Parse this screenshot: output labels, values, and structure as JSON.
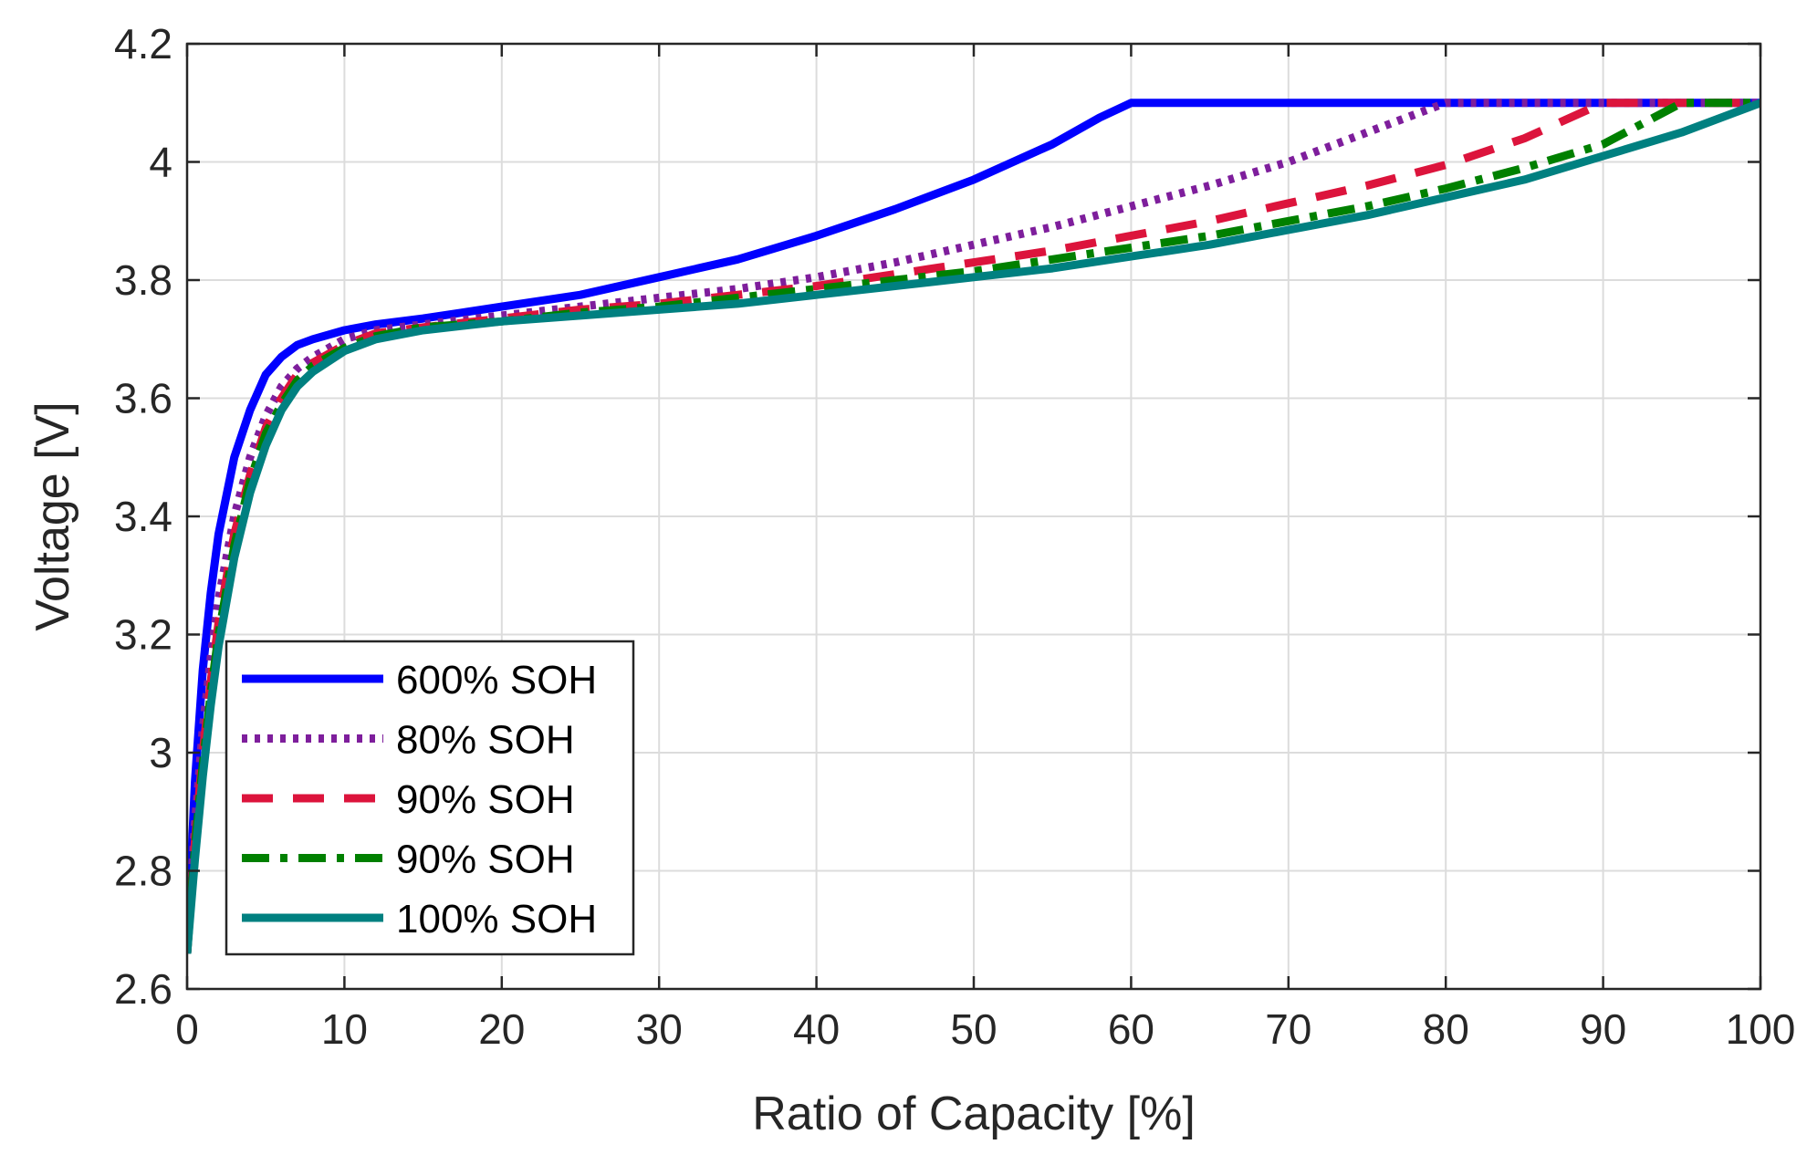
{
  "chart_data": {
    "type": "line",
    "title": "",
    "xlabel": "Ratio of Capacity [%]",
    "ylabel": "Voltage [V]",
    "xlim": [
      0,
      100
    ],
    "ylim": [
      2.6,
      4.2
    ],
    "xticks": [
      0,
      10,
      20,
      30,
      40,
      50,
      60,
      70,
      80,
      90,
      100
    ],
    "xtick_labels": [
      "0",
      "10",
      "20",
      "30",
      "40",
      "50",
      "60",
      "70",
      "80",
      "90",
      "100"
    ],
    "yticks": [
      2.6,
      2.8,
      3.0,
      3.2,
      3.4,
      3.6,
      3.8,
      4.0,
      4.2
    ],
    "ytick_labels": [
      "2.6",
      "2.8",
      "3",
      "3.2",
      "3.4",
      "3.6",
      "3.8",
      "4",
      "4.2"
    ],
    "grid": true,
    "legend_position": "bottom-left",
    "series": [
      {
        "name": "600% SOH",
        "color": "#0000ff",
        "dash": "solid",
        "x": [
          0,
          0.5,
          1,
          1.5,
          2,
          3,
          4,
          5,
          6,
          7,
          8,
          10,
          12,
          15,
          20,
          25,
          30,
          35,
          40,
          45,
          50,
          55,
          58,
          60,
          70,
          80,
          90,
          100
        ],
        "y": [
          2.66,
          2.95,
          3.14,
          3.27,
          3.37,
          3.5,
          3.58,
          3.64,
          3.67,
          3.69,
          3.7,
          3.715,
          3.725,
          3.735,
          3.755,
          3.775,
          3.805,
          3.835,
          3.875,
          3.92,
          3.97,
          4.03,
          4.075,
          4.1,
          4.1,
          4.1,
          4.1,
          4.1
        ]
      },
      {
        "name": "80% SOH",
        "color": "#7e1e9c",
        "dash": "dotted",
        "x": [
          0,
          0.5,
          1,
          1.5,
          2,
          3,
          4,
          5,
          6,
          7,
          8,
          10,
          12,
          15,
          20,
          25,
          30,
          35,
          40,
          45,
          50,
          55,
          60,
          65,
          70,
          75,
          80,
          90,
          100
        ],
        "y": [
          2.66,
          2.88,
          3.04,
          3.16,
          3.26,
          3.4,
          3.5,
          3.57,
          3.62,
          3.65,
          3.67,
          3.7,
          3.715,
          3.725,
          3.74,
          3.755,
          3.77,
          3.785,
          3.805,
          3.83,
          3.86,
          3.89,
          3.925,
          3.96,
          4.0,
          4.05,
          4.1,
          4.1,
          4.1
        ]
      },
      {
        "name": "90% SOH",
        "color": "#dc143c",
        "dash": "dashed",
        "x": [
          0,
          0.5,
          1,
          1.5,
          2,
          3,
          4,
          5,
          6,
          7,
          8,
          10,
          12,
          15,
          20,
          25,
          30,
          35,
          40,
          45,
          50,
          55,
          60,
          65,
          70,
          75,
          80,
          85,
          90,
          100
        ],
        "y": [
          2.66,
          2.85,
          3.0,
          3.12,
          3.22,
          3.37,
          3.47,
          3.55,
          3.6,
          3.64,
          3.66,
          3.69,
          3.71,
          3.72,
          3.735,
          3.75,
          3.76,
          3.775,
          3.79,
          3.81,
          3.83,
          3.85,
          3.875,
          3.9,
          3.93,
          3.96,
          3.995,
          4.04,
          4.1,
          4.1
        ]
      },
      {
        "name": "90% SOH",
        "color": "#008000",
        "dash": "dashdot",
        "x": [
          0,
          0.5,
          1,
          1.5,
          2,
          3,
          4,
          5,
          6,
          7,
          8,
          10,
          12,
          15,
          20,
          25,
          30,
          35,
          40,
          45,
          50,
          55,
          60,
          65,
          70,
          75,
          80,
          85,
          90,
          95,
          100
        ],
        "y": [
          2.66,
          2.84,
          2.98,
          3.1,
          3.2,
          3.35,
          3.46,
          3.54,
          3.59,
          3.63,
          3.655,
          3.685,
          3.705,
          3.72,
          3.73,
          3.745,
          3.755,
          3.77,
          3.785,
          3.8,
          3.815,
          3.835,
          3.855,
          3.875,
          3.9,
          3.925,
          3.955,
          3.99,
          4.03,
          4.1,
          4.1
        ]
      },
      {
        "name": "100% SOH",
        "color": "#008080",
        "dash": "solid",
        "x": [
          0,
          0.5,
          1,
          1.5,
          2,
          3,
          4,
          5,
          6,
          7,
          8,
          10,
          12,
          15,
          20,
          25,
          30,
          35,
          40,
          45,
          50,
          55,
          60,
          65,
          70,
          75,
          80,
          85,
          90,
          95,
          100
        ],
        "y": [
          2.66,
          2.82,
          2.96,
          3.08,
          3.18,
          3.33,
          3.44,
          3.52,
          3.58,
          3.62,
          3.645,
          3.68,
          3.7,
          3.715,
          3.73,
          3.74,
          3.75,
          3.76,
          3.775,
          3.79,
          3.805,
          3.82,
          3.84,
          3.86,
          3.885,
          3.91,
          3.94,
          3.97,
          4.01,
          4.05,
          4.1
        ]
      }
    ]
  }
}
